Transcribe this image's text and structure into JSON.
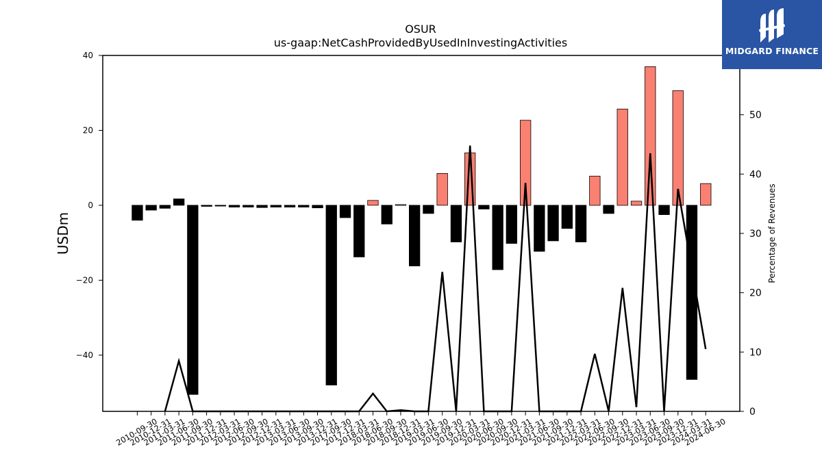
{
  "logo": {
    "text": "MIDGARD FINANCE",
    "background": "#2a55a5"
  },
  "chart_data": {
    "type": "bar",
    "title": "OSUR",
    "subtitle": "us-gaap:NetCashProvidedByUsedInInvestingActivities",
    "ylabel": "USDm",
    "y2label": "Percentage of Revenues",
    "ylim": [
      -55,
      40
    ],
    "y2lim": [
      0,
      60
    ],
    "yticks": [
      -40,
      -20,
      0,
      20,
      40
    ],
    "y2ticks": [
      0,
      10,
      20,
      30,
      40,
      50
    ],
    "grid": false,
    "colors": {
      "positive_fill": "#fa8072",
      "negative_fill": "#000000",
      "edge": "#000000",
      "line": "#000000"
    },
    "categories": [
      "2010-09-30",
      "2010-12-31",
      "2011-03-31",
      "2011-06-30",
      "2011-09-30",
      "2011-12-31",
      "2012-03-31",
      "2012-06-30",
      "2012-09-30",
      "2012-12-31",
      "2013-03-31",
      "2013-06-30",
      "2013-09-30",
      "2013-12-31",
      "2017-09-30",
      "2017-12-31",
      "2018-03-31",
      "2018-06-30",
      "2018-09-30",
      "2018-12-31",
      "2019-03-31",
      "2019-06-30",
      "2019-09-30",
      "2019-12-31",
      "2020-03-31",
      "2020-06-30",
      "2020-09-30",
      "2020-12-31",
      "2021-03-31",
      "2021-06-30",
      "2021-09-30",
      "2021-12-31",
      "2022-03-31",
      "2022-06-30",
      "2022-09-30",
      "2022-12-31",
      "2023-03-31",
      "2023-06-30",
      "2023-09-30",
      "2023-12-31",
      "2024-03-31",
      "2024-06-30"
    ],
    "series": [
      {
        "values": [
          -4.0,
          -1.3,
          -0.8,
          1.7,
          -50.5,
          -0.3,
          -0.2,
          -0.5,
          -0.5,
          -0.6,
          -0.5,
          -0.5,
          -0.5,
          -0.7,
          -48.0,
          -3.3,
          -13.8,
          1.3,
          -5.0,
          0.2,
          -16.2,
          -2.2,
          8.5,
          -9.8,
          14.0,
          -1.0,
          -17.2,
          -10.2,
          22.7,
          -12.3,
          -9.5,
          -6.2,
          -9.8,
          7.8,
          -2.2,
          25.7,
          1.1,
          37.0,
          -2.5,
          30.6,
          -46.5,
          5.8
        ],
        "color_change": [
          -9,
          -22,
          -8,
          -14,
          -1500,
          -4,
          -3,
          -8,
          -6,
          -11,
          -7,
          -5,
          -6,
          -12,
          -1400,
          -60,
          -250,
          30,
          -200,
          10,
          -400,
          -30,
          400,
          -120,
          550,
          -15,
          -500,
          -200,
          350,
          -150,
          -100,
          -60,
          -130,
          150,
          -80,
          2000,
          40,
          1500,
          -60,
          900,
          -1200,
          160
        ],
        "line_pct": [
          null,
          null,
          0,
          8.5,
          0,
          0,
          0,
          0,
          0,
          0,
          0,
          0,
          0,
          0,
          0,
          0,
          0,
          3.0,
          0,
          0.2,
          0,
          0,
          23.5,
          0,
          44.8,
          0,
          0,
          0,
          38.5,
          0,
          0,
          0,
          0,
          9.7,
          0,
          20.8,
          0.7,
          43.5,
          0,
          37.5,
          null,
          10.5
        ]
      }
    ]
  }
}
